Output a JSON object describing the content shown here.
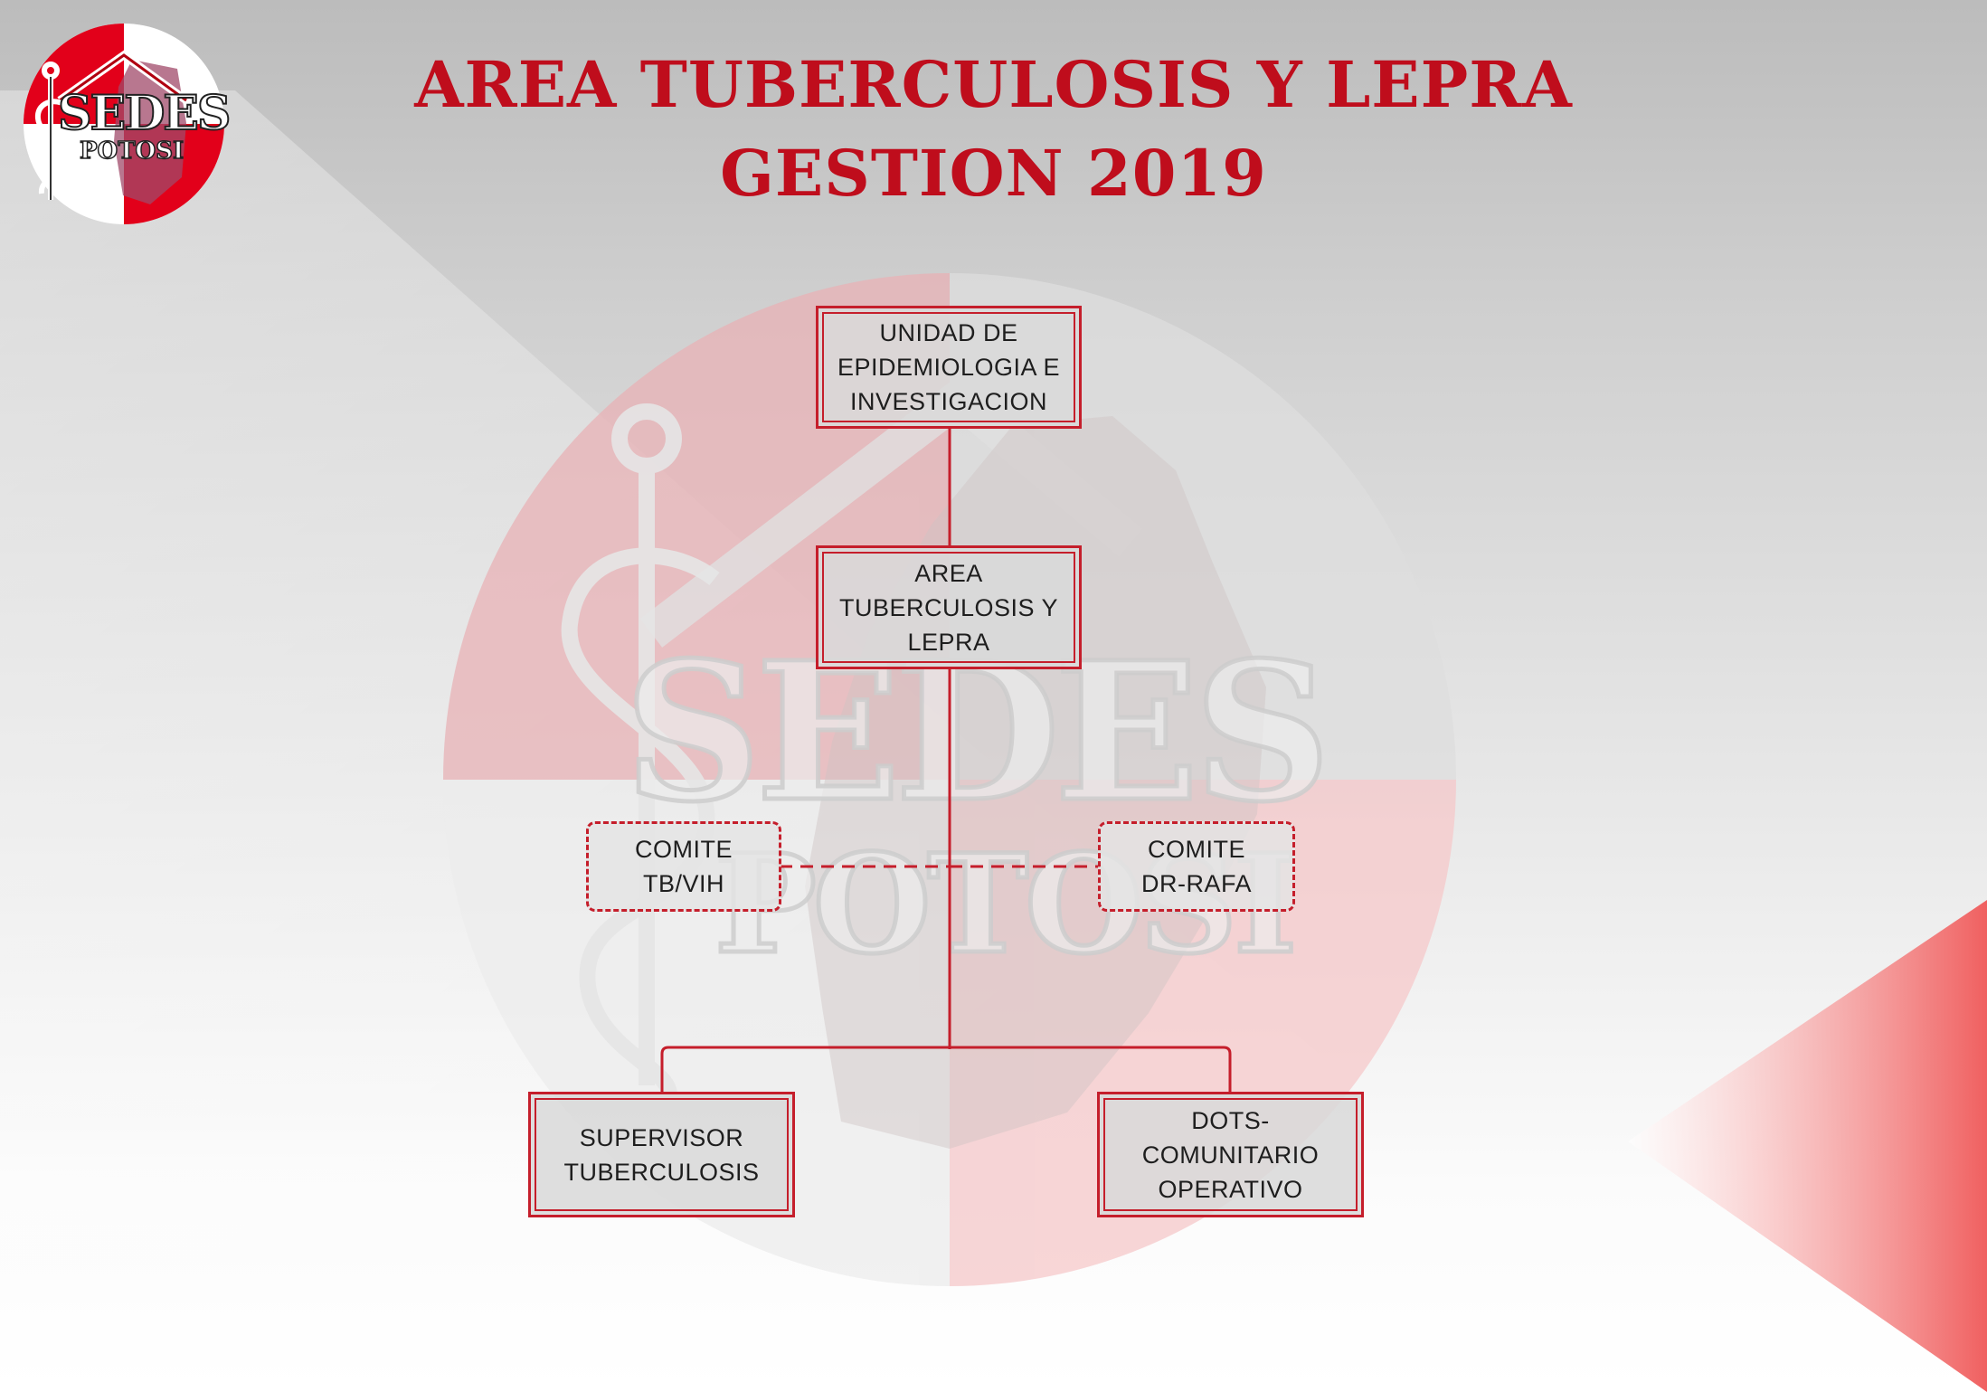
{
  "title": {
    "line1": "AREA TUBERCULOSIS Y LEPRA",
    "line2": "GESTION 2019"
  },
  "logo": {
    "text_main": "SEDES",
    "text_sub": "POTOSI",
    "icon": "caduceus-icon"
  },
  "watermark": {
    "text_main": "SEDES",
    "text_sub": "POTOSI"
  },
  "org_chart": {
    "nodes": {
      "epidemiologia": [
        "UNIDAD DE",
        "EPIDEMIOLOGIA E",
        "INVESTIGACION"
      ],
      "area_tb": [
        "AREA",
        "TUBERCULOSIS Y",
        "LEPRA"
      ],
      "comite_tbvih": [
        "COMITE",
        "TB/VIH"
      ],
      "comite_drrafa": [
        "COMITE",
        "DR-RAFA"
      ],
      "supervisor": [
        "SUPERVISOR",
        "TUBERCULOSIS"
      ],
      "dots": [
        "DOTS-",
        "COMUNITARIO",
        "OPERATIVO"
      ]
    }
  },
  "colors": {
    "accent_red": "#c51e2b",
    "title_red": "#bf0d1c"
  }
}
